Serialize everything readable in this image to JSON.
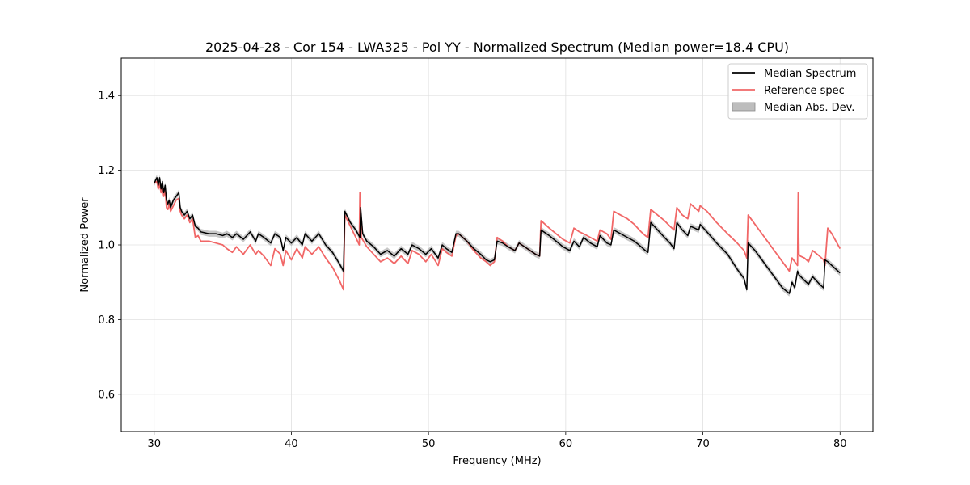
{
  "chart_data": {
    "type": "line",
    "title": "2025-04-28 - Cor 154 - LWA325 - Pol YY - Normalized Spectrum (Median power=18.4 CPU)",
    "xlabel": "Frequency (MHz)",
    "ylabel": "Normalized Power",
    "xlim": [
      27.6,
      82.4
    ],
    "ylim": [
      0.5,
      1.5
    ],
    "xticks": [
      30,
      40,
      50,
      60,
      70,
      80
    ],
    "xtick_labels": [
      "30",
      "40",
      "50",
      "60",
      "70",
      "80"
    ],
    "yticks": [
      0.6,
      0.8,
      1.0,
      1.2,
      1.4
    ],
    "ytick_labels": [
      "0.6",
      "0.8",
      "1.0",
      "1.2",
      "1.4"
    ],
    "grid": true,
    "legend_position": "top-right",
    "mad_halfwidth": 0.008,
    "series": [
      {
        "name": "Median Spectrum",
        "color": "#000000",
        "x": [
          30.0,
          30.2,
          30.3,
          30.4,
          30.5,
          30.6,
          30.7,
          30.8,
          30.9,
          31.0,
          31.1,
          31.2,
          31.4,
          31.6,
          31.8,
          31.9,
          32.0,
          32.2,
          32.4,
          32.6,
          32.8,
          33.0,
          33.2,
          33.4,
          34.0,
          34.5,
          35.0,
          35.3,
          35.7,
          36.0,
          36.5,
          37.0,
          37.4,
          37.6,
          38.0,
          38.5,
          38.8,
          39.2,
          39.4,
          39.6,
          40.0,
          40.4,
          40.8,
          41.0,
          41.5,
          42.0,
          42.5,
          43.0,
          43.5,
          43.8,
          43.9,
          44.3,
          44.7,
          45.0,
          45.05,
          45.2,
          45.5,
          46.0,
          46.5,
          47.0,
          47.5,
          48.0,
          48.5,
          48.8,
          49.3,
          49.8,
          50.2,
          50.7,
          51.0,
          51.3,
          51.7,
          52.0,
          52.2,
          52.8,
          53.3,
          53.8,
          54.2,
          54.5,
          54.8,
          55.0,
          55.4,
          55.8,
          56.3,
          56.6,
          57.0,
          57.4,
          57.8,
          58.1,
          58.2,
          58.8,
          59.3,
          59.8,
          60.3,
          60.6,
          61.0,
          61.3,
          61.8,
          62.3,
          62.5,
          63.0,
          63.3,
          63.5,
          64.0,
          64.5,
          65.0,
          65.5,
          65.8,
          66.0,
          66.2,
          66.7,
          67.2,
          67.6,
          67.9,
          68.1,
          68.5,
          68.9,
          69.1,
          69.4,
          69.7,
          69.8,
          70.3,
          71.0,
          71.8,
          72.5,
          73.0,
          73.2,
          73.3,
          73.8,
          74.3,
          74.8,
          75.3,
          75.8,
          76.3,
          76.5,
          76.7,
          76.9,
          77.0,
          77.4,
          77.7,
          78.0,
          78.5,
          78.8,
          78.9,
          79.1,
          79.4,
          79.7,
          80.0
        ],
        "y": [
          1.165,
          1.18,
          1.16,
          1.18,
          1.15,
          1.17,
          1.14,
          1.16,
          1.12,
          1.11,
          1.12,
          1.1,
          1.12,
          1.13,
          1.14,
          1.1,
          1.09,
          1.08,
          1.09,
          1.07,
          1.08,
          1.05,
          1.045,
          1.035,
          1.03,
          1.03,
          1.025,
          1.03,
          1.02,
          1.03,
          1.015,
          1.035,
          1.01,
          1.03,
          1.02,
          1.005,
          1.03,
          1.02,
          0.985,
          1.02,
          1.005,
          1.02,
          1.0,
          1.03,
          1.01,
          1.03,
          1.0,
          0.98,
          0.95,
          0.93,
          1.09,
          1.06,
          1.04,
          1.02,
          1.1,
          1.03,
          1.01,
          0.995,
          0.975,
          0.985,
          0.97,
          0.99,
          0.975,
          1.0,
          0.99,
          0.975,
          0.99,
          0.965,
          1.0,
          0.99,
          0.98,
          1.03,
          1.03,
          1.01,
          0.99,
          0.975,
          0.96,
          0.955,
          0.96,
          1.01,
          1.005,
          0.995,
          0.985,
          1.005,
          0.995,
          0.985,
          0.975,
          0.97,
          1.04,
          1.025,
          1.01,
          0.995,
          0.985,
          1.01,
          0.995,
          1.02,
          1.005,
          0.995,
          1.025,
          1.005,
          1.0,
          1.04,
          1.03,
          1.02,
          1.01,
          0.995,
          0.985,
          0.98,
          1.06,
          1.04,
          1.02,
          1.005,
          0.99,
          1.06,
          1.04,
          1.025,
          1.05,
          1.045,
          1.04,
          1.055,
          1.035,
          1.005,
          0.975,
          0.935,
          0.91,
          0.88,
          1.005,
          0.985,
          0.96,
          0.935,
          0.91,
          0.885,
          0.87,
          0.9,
          0.885,
          0.93,
          0.92,
          0.905,
          0.895,
          0.915,
          0.895,
          0.885,
          0.96,
          0.955,
          0.945,
          0.935,
          0.925
        ],
        "line_width": 1.5
      },
      {
        "name": "Reference spec",
        "color": "#f16767",
        "x": [
          30.0,
          30.2,
          30.3,
          30.4,
          30.5,
          30.6,
          30.7,
          30.8,
          30.9,
          31.0,
          31.1,
          31.2,
          31.4,
          31.6,
          31.8,
          31.9,
          32.0,
          32.2,
          32.4,
          32.6,
          32.8,
          33.0,
          33.2,
          33.4,
          34.0,
          34.5,
          35.0,
          35.3,
          35.7,
          36.0,
          36.5,
          37.0,
          37.4,
          37.6,
          38.0,
          38.5,
          38.8,
          39.2,
          39.4,
          39.6,
          40.0,
          40.4,
          40.8,
          41.0,
          41.5,
          42.0,
          42.5,
          43.0,
          43.5,
          43.8,
          43.9,
          44.3,
          44.7,
          44.95,
          45.0,
          45.1,
          45.5,
          46.0,
          46.5,
          47.0,
          47.5,
          48.0,
          48.5,
          48.8,
          49.3,
          49.8,
          50.2,
          50.7,
          51.0,
          51.3,
          51.7,
          52.0,
          52.2,
          52.8,
          53.3,
          53.8,
          54.2,
          54.5,
          54.8,
          55.0,
          55.4,
          55.8,
          56.3,
          56.6,
          57.0,
          57.4,
          57.8,
          58.1,
          58.2,
          58.8,
          59.3,
          59.8,
          60.3,
          60.6,
          61.0,
          61.3,
          61.8,
          62.3,
          62.5,
          63.0,
          63.3,
          63.5,
          64.0,
          64.5,
          65.0,
          65.5,
          65.8,
          66.0,
          66.2,
          66.7,
          67.2,
          67.6,
          67.9,
          68.1,
          68.5,
          68.9,
          69.1,
          69.4,
          69.7,
          69.8,
          70.3,
          71.0,
          71.8,
          72.5,
          73.0,
          73.2,
          73.3,
          73.8,
          74.3,
          74.8,
          75.3,
          75.8,
          76.3,
          76.5,
          76.7,
          76.9,
          76.95,
          77.0,
          77.1,
          77.4,
          77.7,
          78.0,
          78.5,
          78.8,
          78.9,
          79.1,
          79.4,
          79.7,
          80.0
        ],
        "y": [
          1.165,
          1.17,
          1.15,
          1.165,
          1.14,
          1.16,
          1.13,
          1.15,
          1.1,
          1.095,
          1.11,
          1.09,
          1.105,
          1.12,
          1.125,
          1.09,
          1.08,
          1.07,
          1.08,
          1.06,
          1.07,
          1.02,
          1.025,
          1.01,
          1.01,
          1.005,
          1.0,
          0.99,
          0.98,
          0.995,
          0.975,
          1.0,
          0.975,
          0.985,
          0.97,
          0.945,
          0.99,
          0.975,
          0.945,
          0.985,
          0.96,
          0.99,
          0.965,
          0.995,
          0.975,
          0.995,
          0.965,
          0.94,
          0.905,
          0.88,
          1.08,
          1.05,
          1.02,
          1.0,
          1.14,
          1.02,
          0.995,
          0.975,
          0.955,
          0.965,
          0.95,
          0.97,
          0.95,
          0.985,
          0.975,
          0.955,
          0.975,
          0.945,
          0.99,
          0.98,
          0.97,
          1.025,
          1.03,
          1.01,
          0.985,
          0.965,
          0.955,
          0.945,
          0.955,
          1.02,
          1.01,
          0.995,
          0.985,
          1.005,
          0.995,
          0.985,
          0.975,
          0.97,
          1.065,
          1.045,
          1.03,
          1.015,
          1.005,
          1.045,
          1.035,
          1.03,
          1.02,
          1.01,
          1.04,
          1.03,
          1.015,
          1.09,
          1.08,
          1.07,
          1.055,
          1.035,
          1.025,
          1.02,
          1.095,
          1.08,
          1.065,
          1.05,
          1.04,
          1.1,
          1.08,
          1.07,
          1.11,
          1.1,
          1.09,
          1.105,
          1.09,
          1.06,
          1.03,
          1.005,
          0.985,
          0.965,
          1.08,
          1.055,
          1.03,
          1.005,
          0.98,
          0.955,
          0.93,
          0.965,
          0.955,
          0.945,
          1.14,
          0.975,
          0.97,
          0.965,
          0.955,
          0.985,
          0.97,
          0.96,
          0.945,
          1.045,
          1.03,
          1.01,
          0.99
        ],
        "line_width": 1.8
      }
    ],
    "legend": [
      {
        "label": "Median Spectrum",
        "kind": "line",
        "color": "#000000"
      },
      {
        "label": "Reference spec",
        "kind": "line",
        "color": "#f16767"
      },
      {
        "label": "Median Abs. Dev.",
        "kind": "patch",
        "color": "#bdbdbd"
      }
    ]
  }
}
